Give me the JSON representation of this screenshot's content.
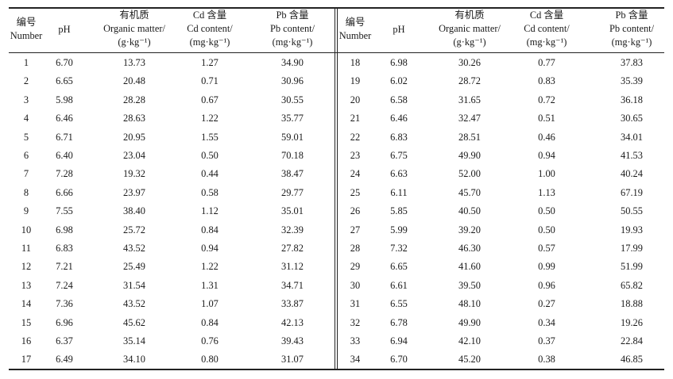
{
  "headers": {
    "number": [
      "编号",
      "Number"
    ],
    "ph": [
      "pH"
    ],
    "organic": [
      "有机质",
      "Organic matter/",
      "(g·kg⁻¹)"
    ],
    "cd": [
      "Cd 含量",
      "Cd content/",
      "(mg·kg⁻¹)"
    ],
    "pb": [
      "Pb 含量",
      "Pb content/",
      "(mg·kg⁻¹)"
    ]
  },
  "left_rows": [
    [
      "1",
      "6.70",
      "13.73",
      "1.27",
      "34.90"
    ],
    [
      "2",
      "6.65",
      "20.48",
      "0.71",
      "30.96"
    ],
    [
      "3",
      "5.98",
      "28.28",
      "0.67",
      "30.55"
    ],
    [
      "4",
      "6.46",
      "28.63",
      "1.22",
      "35.77"
    ],
    [
      "5",
      "6.71",
      "20.95",
      "1.55",
      "59.01"
    ],
    [
      "6",
      "6.40",
      "23.04",
      "0.50",
      "70.18"
    ],
    [
      "7",
      "7.28",
      "19.32",
      "0.44",
      "38.47"
    ],
    [
      "8",
      "6.66",
      "23.97",
      "0.58",
      "29.77"
    ],
    [
      "9",
      "7.55",
      "38.40",
      "1.12",
      "35.01"
    ],
    [
      "10",
      "6.98",
      "25.72",
      "0.84",
      "32.39"
    ],
    [
      "11",
      "6.83",
      "43.52",
      "0.94",
      "27.82"
    ],
    [
      "12",
      "7.21",
      "25.49",
      "1.22",
      "31.12"
    ],
    [
      "13",
      "7.24",
      "31.54",
      "1.31",
      "34.71"
    ],
    [
      "14",
      "7.36",
      "43.52",
      "1.07",
      "33.87"
    ],
    [
      "15",
      "6.96",
      "45.62",
      "0.84",
      "42.13"
    ],
    [
      "16",
      "6.37",
      "35.14",
      "0.76",
      "39.43"
    ],
    [
      "17",
      "6.49",
      "34.10",
      "0.80",
      "31.07"
    ]
  ],
  "right_rows": [
    [
      "18",
      "6.98",
      "30.26",
      "0.77",
      "37.83"
    ],
    [
      "19",
      "6.02",
      "28.72",
      "0.83",
      "35.39"
    ],
    [
      "20",
      "6.58",
      "31.65",
      "0.72",
      "36.18"
    ],
    [
      "21",
      "6.46",
      "32.47",
      "0.51",
      "30.65"
    ],
    [
      "22",
      "6.83",
      "28.51",
      "0.46",
      "34.01"
    ],
    [
      "23",
      "6.75",
      "49.90",
      "0.94",
      "41.53"
    ],
    [
      "24",
      "6.63",
      "52.00",
      "1.00",
      "40.24"
    ],
    [
      "25",
      "6.11",
      "45.70",
      "1.13",
      "67.19"
    ],
    [
      "26",
      "5.85",
      "40.50",
      "0.50",
      "50.55"
    ],
    [
      "27",
      "5.99",
      "39.20",
      "0.50",
      "19.93"
    ],
    [
      "28",
      "7.32",
      "46.30",
      "0.57",
      "17.99"
    ],
    [
      "29",
      "6.65",
      "41.60",
      "0.99",
      "51.99"
    ],
    [
      "30",
      "6.61",
      "39.50",
      "0.96",
      "65.82"
    ],
    [
      "31",
      "6.55",
      "48.10",
      "0.27",
      "18.88"
    ],
    [
      "32",
      "6.78",
      "49.90",
      "0.34",
      "19.26"
    ],
    [
      "33",
      "6.94",
      "42.10",
      "0.37",
      "22.84"
    ],
    [
      "34",
      "6.70",
      "45.20",
      "0.38",
      "46.85"
    ]
  ]
}
